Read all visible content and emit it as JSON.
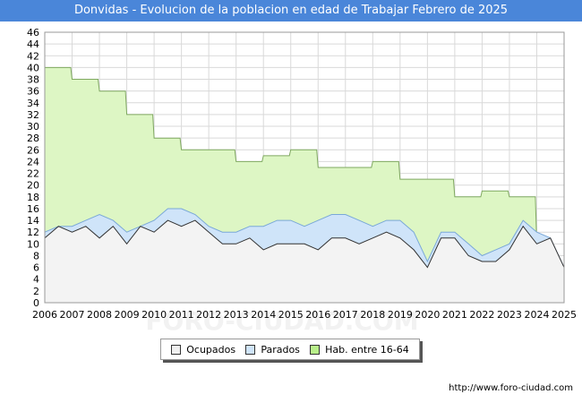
{
  "title": "Donvidas - Evolucion de la poblacion en edad de Trabajar Febrero de 2025",
  "source": "http://www.foro-ciudad.com",
  "watermark": "FORO-CIUDAD.COM",
  "colors": {
    "hab_fill": "#ddf6c4",
    "hab_stroke": "#7fa860",
    "parados_fill": "#cfe4f9",
    "parados_stroke": "#7aa8d8",
    "ocupados_fill": "#f3f3f3",
    "ocupados_stroke": "#333333",
    "grid": "#d9d9d9"
  },
  "legend": [
    {
      "label": "Ocupados",
      "color": "#f0f0f0"
    },
    {
      "label": "Parados",
      "color": "#cfe4f9"
    },
    {
      "label": "Hab. entre 16-64",
      "color": "#b8ef8a"
    }
  ],
  "chart_data": {
    "type": "area",
    "title": "Donvidas - Evolucion de la poblacion en edad de Trabajar Febrero de 2025",
    "xlim": [
      2006,
      2025
    ],
    "ylim": [
      0,
      46
    ],
    "x_ticks": [
      "2006",
      "2007",
      "2008",
      "2009",
      "2010",
      "2011",
      "2012",
      "2013",
      "2014",
      "2015",
      "2016",
      "2017",
      "2018",
      "2019",
      "2020",
      "2021",
      "2022",
      "2023",
      "2024",
      "2025"
    ],
    "y_ticks": [
      0,
      2,
      4,
      6,
      8,
      10,
      12,
      14,
      16,
      18,
      20,
      22,
      24,
      26,
      28,
      30,
      32,
      34,
      36,
      38,
      40,
      42,
      44,
      46
    ],
    "grid": true,
    "series": [
      {
        "name": "Hab. entre 16-64",
        "x": [
          2006,
          2006.95,
          2007,
          2007.95,
          2008,
          2008.95,
          2009,
          2009.95,
          2010,
          2010.95,
          2011,
          2012.95,
          2013,
          2013.95,
          2014,
          2014.95,
          2015,
          2015.95,
          2016,
          2017.95,
          2018,
          2018.95,
          2019,
          2020.95,
          2021,
          2021.95,
          2022,
          2022.95,
          2023,
          2023.95,
          2024
        ],
        "values": [
          40,
          40,
          38,
          38,
          36,
          36,
          32,
          32,
          28,
          28,
          26,
          26,
          24,
          24,
          25,
          25,
          26,
          26,
          23,
          23,
          24,
          24,
          21,
          21,
          18,
          18,
          19,
          19,
          18,
          18,
          10
        ]
      },
      {
        "name": "Parados",
        "x": [
          2006,
          2006.5,
          2007,
          2007.5,
          2008,
          2008.5,
          2009,
          2009.5,
          2010,
          2010.5,
          2011,
          2011.5,
          2012,
          2012.5,
          2013,
          2013.5,
          2014,
          2014.5,
          2015,
          2015.5,
          2016,
          2016.5,
          2017,
          2017.5,
          2018,
          2018.5,
          2019,
          2019.5,
          2020,
          2020.5,
          2021,
          2021.5,
          2022,
          2022.5,
          2023,
          2023.5,
          2024,
          2024.5,
          2025
        ],
        "values": [
          12,
          13,
          13,
          14,
          15,
          14,
          12,
          13,
          14,
          16,
          16,
          15,
          13,
          12,
          12,
          13,
          13,
          14,
          14,
          13,
          14,
          15,
          15,
          14,
          13,
          14,
          14,
          12,
          7,
          12,
          12,
          10,
          8,
          9,
          10,
          14,
          12,
          11,
          6
        ]
      },
      {
        "name": "Ocupados",
        "x": [
          2006,
          2006.5,
          2007,
          2007.5,
          2008,
          2008.5,
          2009,
          2009.5,
          2010,
          2010.5,
          2011,
          2011.5,
          2012,
          2012.5,
          2013,
          2013.5,
          2014,
          2014.5,
          2015,
          2015.5,
          2016,
          2016.5,
          2017,
          2017.5,
          2018,
          2018.5,
          2019,
          2019.5,
          2020,
          2020.5,
          2021,
          2021.5,
          2022,
          2022.5,
          2023,
          2023.5,
          2024,
          2024.5,
          2025
        ],
        "values": [
          11,
          13,
          12,
          13,
          11,
          13,
          10,
          13,
          12,
          14,
          13,
          14,
          12,
          10,
          10,
          11,
          9,
          10,
          10,
          10,
          9,
          11,
          11,
          10,
          11,
          12,
          11,
          9,
          6,
          11,
          11,
          8,
          7,
          7,
          9,
          13,
          10,
          11,
          6
        ]
      }
    ]
  }
}
